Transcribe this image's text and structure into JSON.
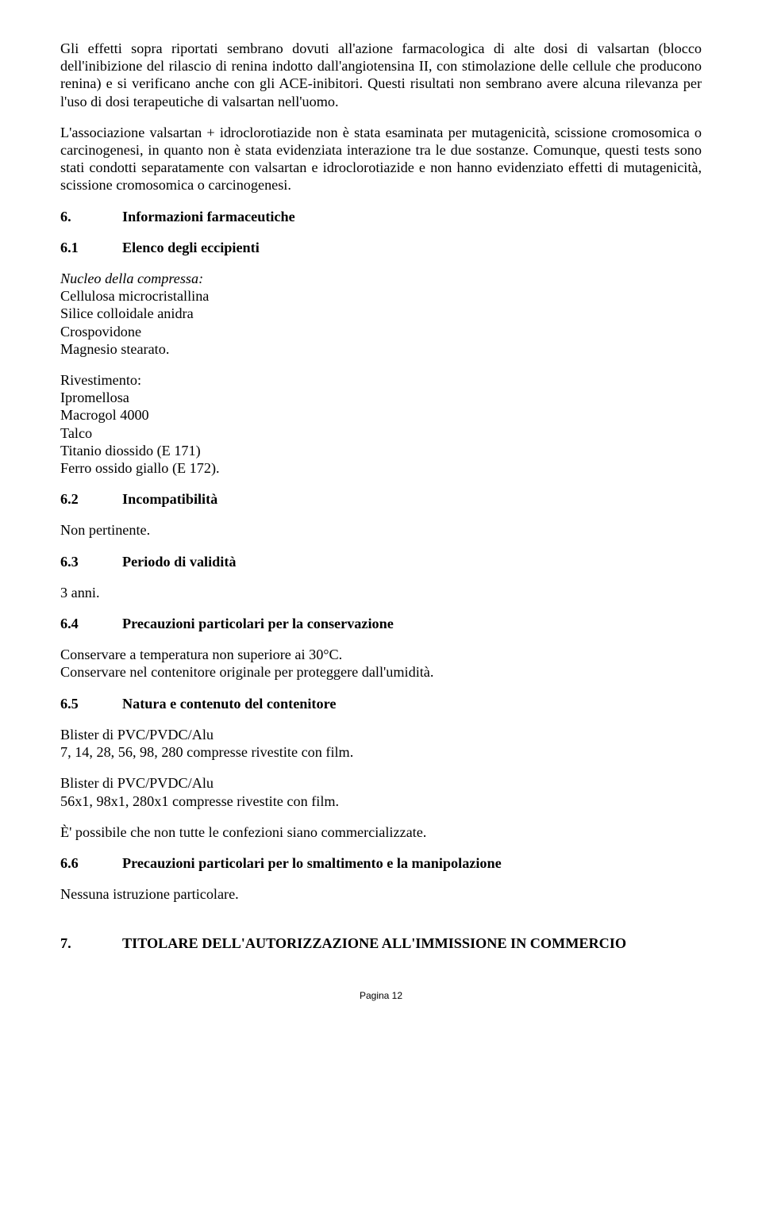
{
  "paragraphs": {
    "p1": "Gli effetti sopra riportati sembrano dovuti all'azione farmacologica di alte dosi di valsartan (blocco dell'inibizione del rilascio di renina indotto dall'angiotensina II, con stimolazione delle cellule che producono renina) e si verificano anche con gli ACE-inibitori. Questi risultati non sembrano avere alcuna rilevanza per l'uso di dosi terapeutiche di valsartan nell'uomo.",
    "p2": "L'associazione valsartan + idroclorotiazide non è stata esaminata per mutagenicità, scissione cromosomica o carcinogenesi, in quanto non è stata evidenziata interazione tra le due sostanze. Comunque, questi tests sono stati condotti separatamente con valsartan e idroclorotiazide e non hanno evidenziato effetti di mutagenicità, scissione cromosomica o carcinogenesi."
  },
  "sections": {
    "s6": {
      "num": "6.",
      "title": "Informazioni farmaceutiche"
    },
    "s6_1": {
      "num": "6.1",
      "title": "Elenco degli eccipienti"
    },
    "s6_2": {
      "num": "6.2",
      "title": "Incompatibilità"
    },
    "s6_3": {
      "num": "6.3",
      "title": "Periodo di validità"
    },
    "s6_4": {
      "num": "6.4",
      "title": "Precauzioni particolari per la conservazione"
    },
    "s6_5": {
      "num": "6.5",
      "title": "Natura e contenuto del contenitore"
    },
    "s6_6": {
      "num": "6.6",
      "title": "Precauzioni particolari per lo smaltimento e la manipolazione"
    },
    "s7": {
      "num": "7.",
      "title": "TITOLARE DELL'AUTORIZZAZIONE ALL'IMMISSIONE IN COMMERCIO"
    }
  },
  "excipients": {
    "nucleus_label": "Nucleo della compressa:",
    "nucleus": {
      "l1": "Cellulosa microcristallina",
      "l2": "Silice colloidale anidra",
      "l3": "Crospovidone",
      "l4": "Magnesio stearato."
    },
    "coating_label": "Rivestimento:",
    "coating": {
      "l1": "Ipromellosa",
      "l2": "Macrogol 4000",
      "l3": "Talco",
      "l4": "Titanio diossido (E 171)",
      "l5": "Ferro ossido giallo (E 172)."
    }
  },
  "incompat": "Non pertinente.",
  "validity": "3 anni.",
  "storage": {
    "l1": "Conservare a temperatura non superiore ai 30°C.",
    "l2": "Conservare nel contenitore originale per proteggere dall'umidità."
  },
  "container": {
    "b1": {
      "l1": "Blister di PVC/PVDC/Alu",
      "l2": "7, 14, 28, 56, 98, 280 compresse rivestite con film."
    },
    "b2": {
      "l1": "Blister di PVC/PVDC/Alu",
      "l2": "56x1, 98x1, 280x1 compresse rivestite con film."
    },
    "note": "È' possibile che non tutte le confezioni siano commercializzate."
  },
  "disposal": "Nessuna istruzione particolare.",
  "footer": "Pagina 12"
}
